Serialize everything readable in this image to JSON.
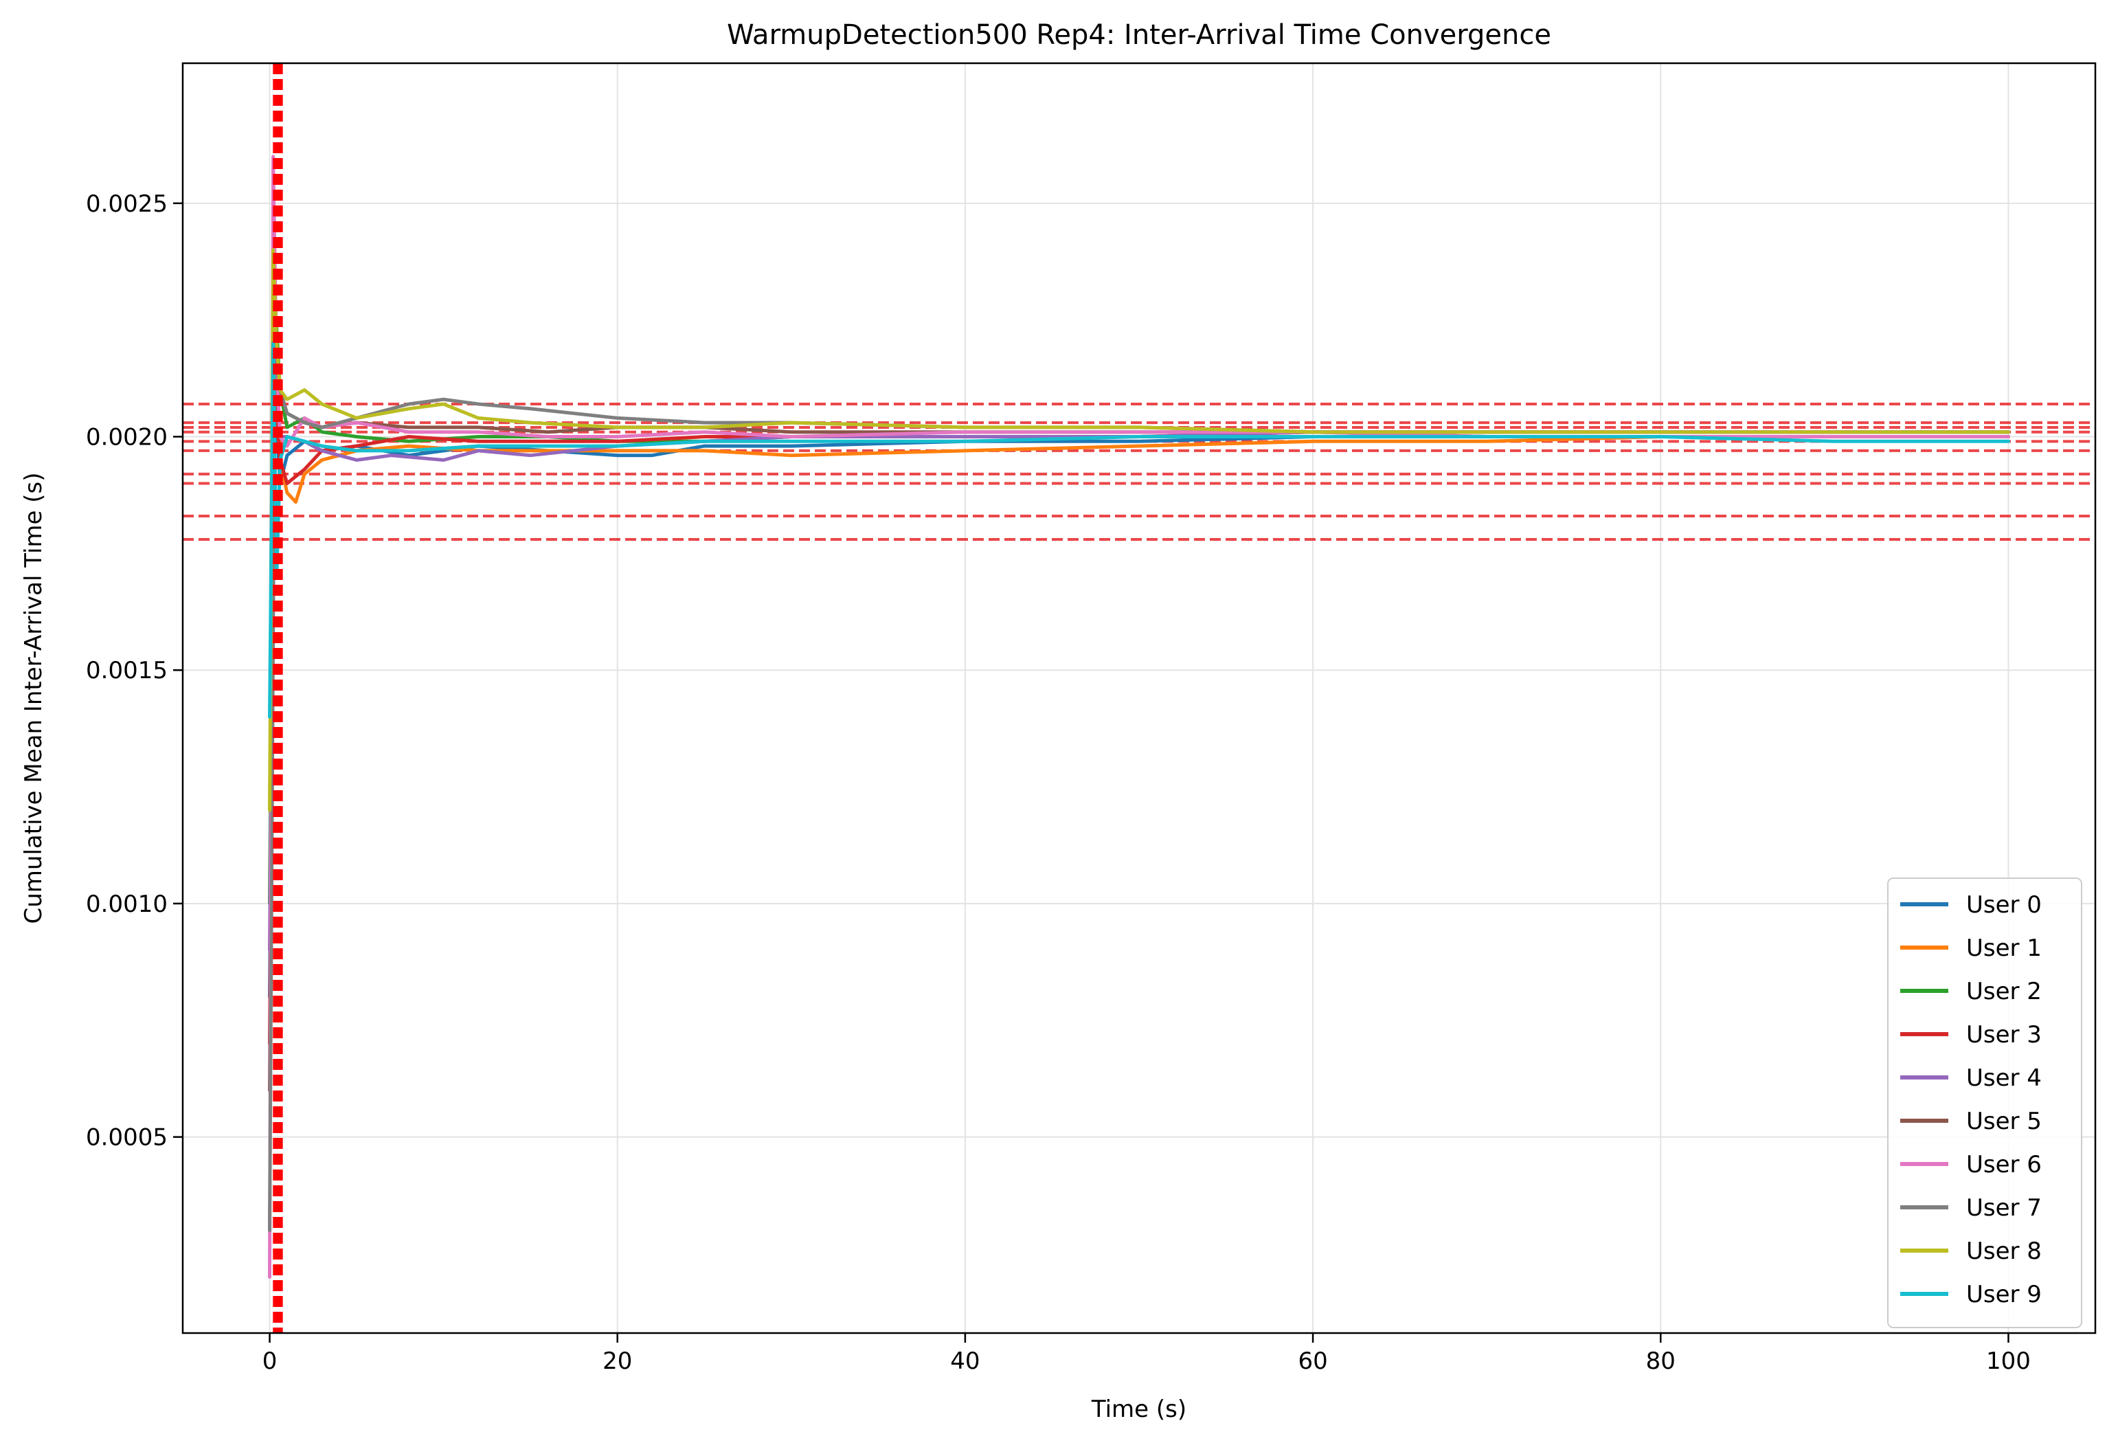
{
  "chart_data": {
    "type": "line",
    "title": "WarmupDetection500 Rep4: Inter-Arrival Time Convergence",
    "xlabel": "Time (s)",
    "ylabel": "Cumulative Mean Inter-Arrival Time (s)",
    "xlim": [
      -5,
      105
    ],
    "ylim": [
      8e-05,
      0.0028
    ],
    "xticks": [
      {
        "value": 0,
        "label": "0"
      },
      {
        "value": 20,
        "label": "20"
      },
      {
        "value": 40,
        "label": "40"
      },
      {
        "value": 60,
        "label": "60"
      },
      {
        "value": 80,
        "label": "80"
      },
      {
        "value": 100,
        "label": "100"
      }
    ],
    "yticks": [
      {
        "value": 0.0005,
        "label": "0.0005"
      },
      {
        "value": 0.001,
        "label": "0.0010"
      },
      {
        "value": 0.0015,
        "label": "0.0015"
      },
      {
        "value": 0.002,
        "label": "0.0020"
      },
      {
        "value": 0.0025,
        "label": "0.0025"
      }
    ],
    "grid": true,
    "legend_position": "lower-right",
    "warmup_vertical_lines": [
      0.28,
      0.34,
      0.38,
      0.42,
      0.46,
      0.5,
      0.54,
      0.58,
      0.62,
      0.66
    ],
    "reference_horizontal_lines": [
      0.00207,
      0.00203,
      0.00202,
      0.00201,
      0.00199,
      0.00197,
      0.00192,
      0.0019,
      0.00183,
      0.00178
    ],
    "reference_line_color": "#e8282b",
    "warmup_line_color": "#ff0000",
    "series": [
      {
        "name": "User 0",
        "color": "#1f77b4",
        "x": [
          0,
          0.3,
          0.6,
          1,
          2,
          3,
          5,
          8,
          12,
          16,
          20,
          22,
          25,
          30,
          40,
          50,
          60,
          70,
          80,
          90,
          100
        ],
        "y": [
          0.0008,
          0.0021,
          0.0019,
          0.00196,
          0.00199,
          0.00197,
          0.00198,
          0.00196,
          0.00198,
          0.00197,
          0.00196,
          0.00196,
          0.00198,
          0.00198,
          0.00199,
          0.00199,
          0.002,
          0.002,
          0.002,
          0.002,
          0.002
        ]
      },
      {
        "name": "User 1",
        "color": "#ff7f0e",
        "x": [
          0,
          0.3,
          0.6,
          1,
          1.5,
          2,
          3,
          5,
          8,
          12,
          16,
          20,
          25,
          30,
          40,
          50,
          60,
          70,
          80,
          90,
          100
        ],
        "y": [
          0.0012,
          0.0022,
          0.00195,
          0.00188,
          0.00186,
          0.00192,
          0.00195,
          0.00197,
          0.00198,
          0.00197,
          0.00197,
          0.00197,
          0.00197,
          0.00196,
          0.00197,
          0.00198,
          0.00199,
          0.00199,
          0.002,
          0.002,
          0.002
        ]
      },
      {
        "name": "User 2",
        "color": "#2ca02c",
        "x": [
          0,
          0.3,
          0.6,
          1,
          2,
          3,
          5,
          8,
          12,
          16,
          20,
          25,
          30,
          40,
          50,
          60,
          70,
          80,
          90,
          100
        ],
        "y": [
          0.001,
          0.0023,
          0.0021,
          0.00202,
          0.00204,
          0.00201,
          0.002,
          0.00199,
          0.002,
          0.002,
          0.00199,
          0.00199,
          0.002,
          0.002,
          0.002,
          0.002,
          0.002,
          0.002,
          0.002,
          0.002
        ]
      },
      {
        "name": "User 3",
        "color": "#d62728",
        "x": [
          0,
          0.3,
          0.6,
          1,
          2,
          3,
          5,
          8,
          12,
          16,
          20,
          25,
          30,
          40,
          50,
          60,
          70,
          80,
          90,
          100
        ],
        "y": [
          0.0007,
          0.0021,
          0.00195,
          0.0019,
          0.00193,
          0.00197,
          0.00198,
          0.002,
          0.00199,
          0.00199,
          0.00199,
          0.002,
          0.002,
          0.002,
          0.002,
          0.00201,
          0.00201,
          0.00201,
          0.00201,
          0.00201
        ]
      },
      {
        "name": "User 4",
        "color": "#9467bd",
        "x": [
          0,
          0.3,
          0.6,
          1,
          2,
          3,
          5,
          7,
          10,
          12,
          15,
          20,
          25,
          30,
          40,
          50,
          60,
          70,
          80,
          90,
          100
        ],
        "y": [
          0.0009,
          0.0022,
          0.002,
          0.002,
          0.00199,
          0.00197,
          0.00195,
          0.00196,
          0.00195,
          0.00197,
          0.00196,
          0.00198,
          0.00199,
          0.002,
          0.002,
          0.002,
          0.00201,
          0.00201,
          0.00201,
          0.00201,
          0.00201
        ]
      },
      {
        "name": "User 5",
        "color": "#8c564b",
        "x": [
          0,
          0.3,
          0.6,
          1,
          2,
          3,
          5,
          8,
          12,
          16,
          20,
          25,
          30,
          40,
          50,
          60,
          70,
          80,
          90,
          100
        ],
        "y": [
          0.0006,
          0.00215,
          0.0021,
          0.00205,
          0.00203,
          0.00202,
          0.00203,
          0.00202,
          0.00202,
          0.00201,
          0.00202,
          0.00202,
          0.00201,
          0.00201,
          0.00201,
          0.00201,
          0.002,
          0.002,
          0.002,
          0.002
        ]
      },
      {
        "name": "User 6",
        "color": "#e377c2",
        "x": [
          0,
          0.2,
          0.4,
          0.6,
          1,
          2,
          3,
          5,
          8,
          12,
          16,
          20,
          25,
          30,
          40,
          50,
          60,
          70,
          80,
          90,
          100
        ],
        "y": [
          0.0002,
          0.0026,
          0.00215,
          0.002,
          0.00198,
          0.00204,
          0.00202,
          0.00203,
          0.00201,
          0.00201,
          0.002,
          0.002,
          0.00201,
          0.002,
          0.00201,
          0.00201,
          0.00201,
          0.002,
          0.002,
          0.002,
          0.002
        ]
      },
      {
        "name": "User 7",
        "color": "#7f7f7f",
        "x": [
          0,
          0.3,
          0.6,
          1,
          2,
          3,
          5,
          8,
          10,
          12,
          15,
          20,
          25,
          30,
          40,
          50,
          60,
          70,
          80,
          90,
          100
        ],
        "y": [
          0.0003,
          0.0022,
          0.0021,
          0.00205,
          0.00203,
          0.00202,
          0.00204,
          0.00207,
          0.00208,
          0.00207,
          0.00206,
          0.00204,
          0.00203,
          0.00203,
          0.00202,
          0.00202,
          0.00201,
          0.00201,
          0.00201,
          0.00201,
          0.00201
        ]
      },
      {
        "name": "User 8",
        "color": "#bcbd22",
        "x": [
          0,
          0.2,
          0.4,
          0.6,
          1,
          2,
          3,
          5,
          8,
          10,
          12,
          15,
          20,
          25,
          30,
          40,
          50,
          60,
          70,
          80,
          90,
          100
        ],
        "y": [
          0.0012,
          0.0024,
          0.0022,
          0.0021,
          0.00208,
          0.0021,
          0.00207,
          0.00204,
          0.00206,
          0.00207,
          0.00204,
          0.00203,
          0.00202,
          0.00202,
          0.00203,
          0.00202,
          0.00202,
          0.00201,
          0.00201,
          0.00201,
          0.00201,
          0.00201
        ]
      },
      {
        "name": "User 9",
        "color": "#17becf",
        "x": [
          0,
          0.2,
          0.4,
          0.6,
          1,
          2,
          3,
          5,
          8,
          12,
          16,
          20,
          25,
          30,
          40,
          50,
          60,
          70,
          80,
          90,
          100
        ],
        "y": [
          0.0014,
          0.0022,
          0.0017,
          0.00195,
          0.002,
          0.00199,
          0.00198,
          0.00197,
          0.00197,
          0.00198,
          0.00198,
          0.00198,
          0.00199,
          0.00199,
          0.00199,
          0.002,
          0.002,
          0.002,
          0.002,
          0.00199,
          0.00199
        ]
      }
    ]
  }
}
